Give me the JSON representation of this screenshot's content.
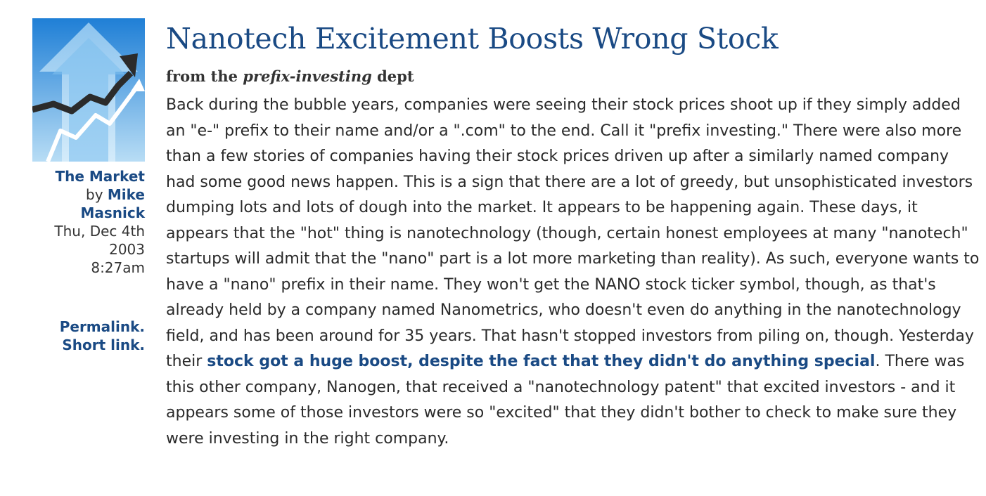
{
  "article": {
    "title": "Nanotech Excitement Boosts Wrong Stock",
    "dept_prefix": "from the",
    "dept_name": "prefix-investing",
    "dept_suffix": "dept",
    "body_before_link": "Back during the bubble years, companies were seeing their stock prices shoot up if they simply added an \"e-\" prefix to their name and/or a \".com\" to the end. Call it \"prefix investing.\" There were also more than a few stories of companies having their stock prices driven up after a similarly named company had some good news happen. This is a sign that there are a lot of greedy, but unsophisticated investors dumping lots and lots of dough into the market. It appears to be happening again. These days, it appears that the \"hot\" thing is nanotechnology (though, certain honest employees at many \"nanotech\" startups will admit that the \"nano\" part is a lot more marketing than reality). As such, everyone wants to have a \"nano\" prefix in their name. They won't get the NANO stock ticker symbol, though, as that's already held by a company named Nanometrics, who doesn't even do anything in the nanotechnology field, and has been around for 35 years. That hasn't stopped investors from piling on, though. Yesterday their ",
    "link_text": "stock got a huge boost, despite the fact that they didn't do anything special",
    "body_after_link": ". There was this other company, Nanogen, that received a \"nanotechnology patent\" that excited investors - and it appears some of those investors were so \"excited\" that they didn't bother to check to make sure they were investing in the right company."
  },
  "sidebar": {
    "category": "The Market",
    "by_label": "by",
    "author": "Mike Masnick",
    "date": "Thu, Dec 4th 2003",
    "time": "8:27am",
    "permalink": "Permalink.",
    "shortlink": "Short link."
  },
  "colors": {
    "link": "#1a4a84",
    "thumb_bg_top": "#1f7fd6",
    "thumb_bg_bottom": "#b8ddf5"
  },
  "icons": {
    "category_image": "stock-chart-arrow-icon"
  }
}
